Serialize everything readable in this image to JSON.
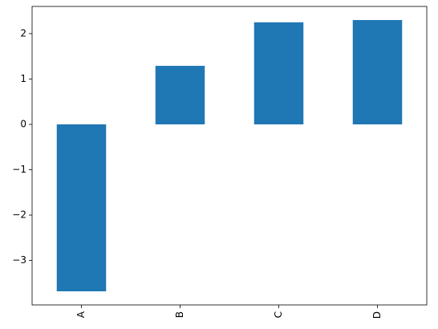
{
  "chart_data": {
    "type": "bar",
    "categories": [
      "A",
      "B",
      "C",
      "D"
    ],
    "values": [
      -3.68,
      1.29,
      2.25,
      2.3
    ],
    "color": "#1f77b4",
    "ylim": [
      -3.98,
      2.6
    ],
    "yticks": [
      {
        "value": -3,
        "label": "−3"
      },
      {
        "value": -2,
        "label": "−2"
      },
      {
        "value": -1,
        "label": "−1"
      },
      0,
      1,
      2
    ],
    "grid": false
  }
}
